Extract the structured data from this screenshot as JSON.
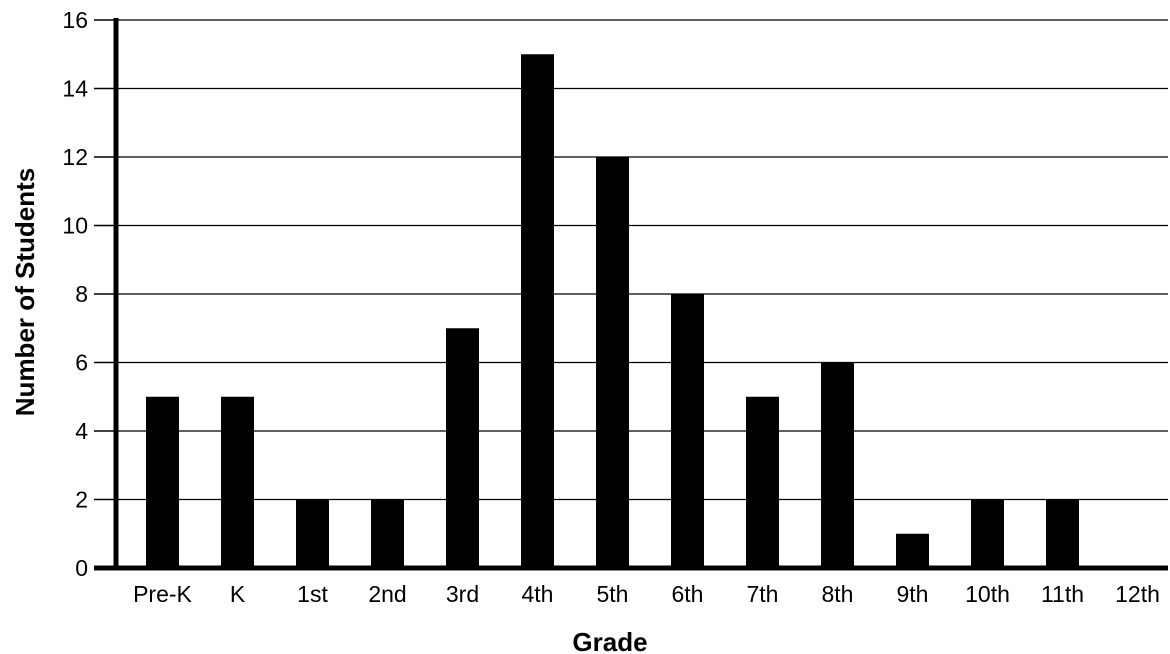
{
  "chart_data": {
    "type": "bar",
    "title": "",
    "xlabel": "Grade",
    "ylabel": "Number of Students",
    "categories": [
      "Pre-K",
      "K",
      "1st",
      "2nd",
      "3rd",
      "4th",
      "5th",
      "6th",
      "7th",
      "8th",
      "9th",
      "10th",
      "11th",
      "12th"
    ],
    "values": [
      5,
      5,
      2,
      2,
      7,
      15,
      12,
      8,
      5,
      6,
      1,
      2,
      2,
      0
    ],
    "ylim": [
      0,
      16
    ],
    "yticks": [
      0,
      2,
      4,
      6,
      8,
      10,
      12,
      14,
      16
    ],
    "grid": true,
    "bar_color": "#000000",
    "legend": "none"
  }
}
